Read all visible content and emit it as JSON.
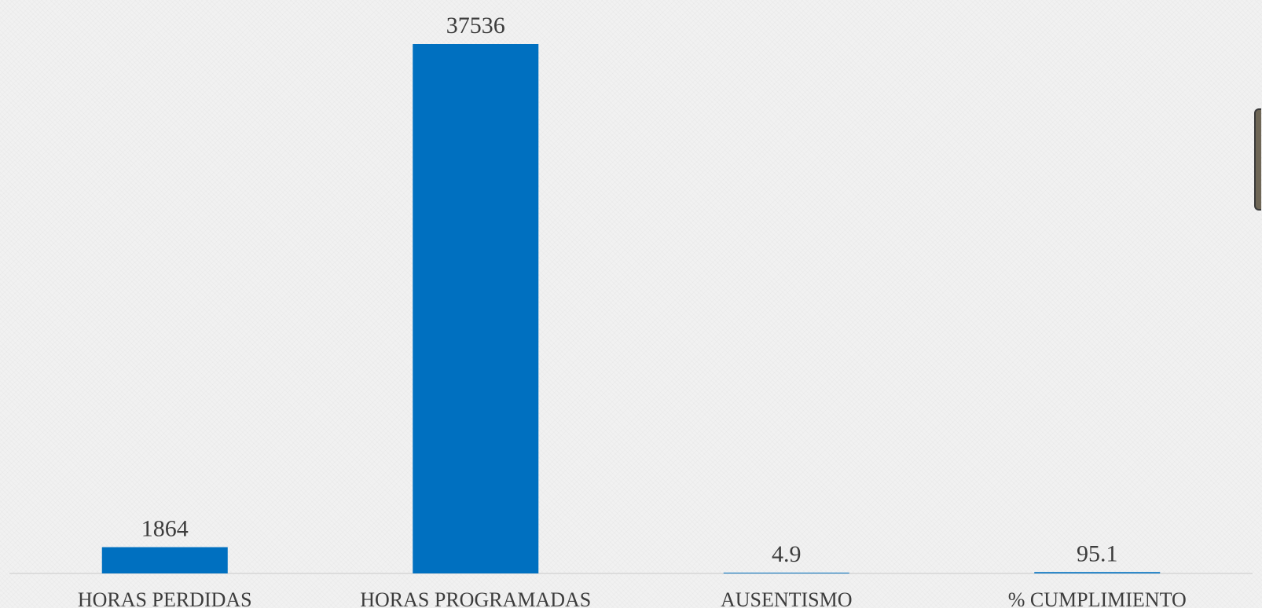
{
  "chart_data": {
    "type": "bar",
    "categories": [
      "HORAS PERDIDAS",
      "HORAS PROGRAMADAS",
      "AUSENTISMO",
      "% CUMPLIMIENTO"
    ],
    "values": [
      1864,
      37536,
      4.9,
      95.1
    ],
    "data_labels": [
      "1864",
      "37536",
      "4.9",
      "95.1"
    ],
    "ylim": [
      0,
      37536
    ],
    "grid": false,
    "legend": "none",
    "bar_color": "#0070c0",
    "axis_color": "#d6d6d6",
    "text_color": "#3c3c3c"
  }
}
